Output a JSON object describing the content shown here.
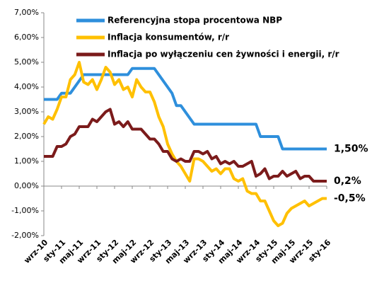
{
  "chart_data": {
    "type": "line",
    "categories": [
      "wrz-10",
      null,
      null,
      null,
      "sty-11",
      null,
      null,
      null,
      "maj-11",
      null,
      null,
      null,
      "wrz-11",
      null,
      null,
      null,
      "sty-12",
      null,
      null,
      null,
      "maj-12",
      null,
      null,
      null,
      "wrz-12",
      null,
      null,
      null,
      "sty-13",
      null,
      null,
      null,
      "maj-13",
      null,
      null,
      null,
      "wrz-13",
      null,
      null,
      null,
      "sty-14",
      null,
      null,
      null,
      "maj-14",
      null,
      null,
      null,
      "wrz-14",
      null,
      null,
      null,
      "sty-15",
      null,
      null,
      null,
      "maj-15",
      null,
      null,
      null,
      "wrz-15",
      null,
      null,
      null,
      "sty-16"
    ],
    "series": [
      {
        "name": "Referencyjna stopa procentowa NBP",
        "color": "#2e8fdc",
        "values": [
          3.5,
          3.5,
          3.5,
          3.5,
          3.75,
          3.75,
          3.75,
          4.0,
          4.25,
          4.5,
          4.5,
          4.5,
          4.5,
          4.5,
          4.5,
          4.5,
          4.5,
          4.5,
          4.5,
          4.5,
          4.75,
          4.75,
          4.75,
          4.75,
          4.75,
          4.75,
          4.5,
          4.25,
          4.0,
          3.75,
          3.25,
          3.25,
          3.0,
          2.75,
          2.5,
          2.5,
          2.5,
          2.5,
          2.5,
          2.5,
          2.5,
          2.5,
          2.5,
          2.5,
          2.5,
          2.5,
          2.5,
          2.5,
          2.5,
          2.0,
          2.0,
          2.0,
          2.0,
          2.0,
          1.5,
          1.5,
          1.5,
          1.5,
          1.5,
          1.5,
          1.5,
          1.5,
          1.5,
          1.5,
          1.5
        ],
        "value_labels": [
          null,
          null,
          null,
          null,
          null,
          null,
          null,
          null,
          null,
          null,
          null,
          null,
          null,
          null,
          null,
          null,
          null,
          null,
          null,
          null,
          null,
          null,
          null,
          null,
          null,
          null,
          null,
          null,
          null,
          null,
          null,
          null,
          null,
          null,
          null,
          null,
          null,
          null,
          null,
          null,
          null,
          null,
          null,
          null,
          null,
          null,
          null,
          null,
          null,
          null,
          null,
          null,
          null,
          null,
          null,
          null,
          null,
          null,
          null,
          null,
          null,
          null,
          null,
          null,
          "1,50%"
        ]
      },
      {
        "name": "Inflacja konsumentów, r/r",
        "color": "#ffc000",
        "values": [
          2.5,
          2.8,
          2.7,
          3.1,
          3.6,
          3.6,
          4.3,
          4.5,
          5.0,
          4.2,
          4.1,
          4.3,
          3.9,
          4.3,
          4.8,
          4.6,
          4.1,
          4.3,
          3.9,
          4.0,
          3.6,
          4.3,
          4.0,
          3.8,
          3.8,
          3.4,
          2.8,
          2.4,
          1.7,
          1.3,
          1.0,
          0.8,
          0.5,
          0.2,
          1.1,
          1.1,
          1.0,
          0.8,
          0.6,
          0.7,
          0.5,
          0.7,
          0.7,
          0.3,
          0.2,
          0.3,
          -0.2,
          -0.3,
          -0.3,
          -0.6,
          -0.6,
          -1.0,
          -1.4,
          -1.6,
          -1.5,
          -1.1,
          -0.9,
          -0.8,
          -0.7,
          -0.6,
          -0.8,
          -0.7,
          -0.6,
          -0.5,
          -0.5
        ],
        "value_labels": [
          null,
          null,
          null,
          null,
          null,
          null,
          null,
          null,
          null,
          null,
          null,
          null,
          null,
          null,
          null,
          null,
          null,
          null,
          null,
          null,
          null,
          null,
          null,
          null,
          null,
          null,
          null,
          null,
          null,
          null,
          null,
          null,
          null,
          null,
          null,
          null,
          null,
          null,
          null,
          null,
          null,
          null,
          null,
          null,
          null,
          null,
          null,
          null,
          null,
          null,
          null,
          null,
          null,
          null,
          null,
          null,
          null,
          null,
          null,
          null,
          null,
          null,
          null,
          null,
          "-0,5%"
        ]
      },
      {
        "name": "Inflacja po wyłączeniu cen żywności i energii, r/r",
        "color": "#7b1b1b",
        "values": [
          1.2,
          1.2,
          1.2,
          1.6,
          1.6,
          1.7,
          2.0,
          2.1,
          2.4,
          2.4,
          2.4,
          2.7,
          2.6,
          2.8,
          3.0,
          3.1,
          2.5,
          2.6,
          2.4,
          2.6,
          2.3,
          2.3,
          2.3,
          2.1,
          1.9,
          1.9,
          1.7,
          1.4,
          1.4,
          1.1,
          1.0,
          1.1,
          1.0,
          1.0,
          1.4,
          1.4,
          1.3,
          1.4,
          1.1,
          1.2,
          0.9,
          1.0,
          0.9,
          1.0,
          0.8,
          0.8,
          0.9,
          1.0,
          0.4,
          0.5,
          0.7,
          0.3,
          0.4,
          0.4,
          0.6,
          0.4,
          0.5,
          0.6,
          0.3,
          0.4,
          0.4,
          0.2,
          0.2,
          0.2,
          0.2
        ],
        "value_labels": [
          null,
          null,
          null,
          null,
          null,
          null,
          null,
          null,
          null,
          null,
          null,
          null,
          null,
          null,
          null,
          null,
          null,
          null,
          null,
          null,
          null,
          null,
          null,
          null,
          null,
          null,
          null,
          null,
          null,
          null,
          null,
          null,
          null,
          null,
          null,
          null,
          null,
          null,
          null,
          null,
          null,
          null,
          null,
          null,
          null,
          null,
          null,
          null,
          null,
          null,
          null,
          null,
          null,
          null,
          null,
          null,
          null,
          null,
          null,
          null,
          null,
          null,
          null,
          null,
          "0,2%"
        ]
      }
    ],
    "ylim": [
      -2,
      7
    ],
    "yticks": [
      {
        "value": -2,
        "label": "-2,00%"
      },
      {
        "value": -1,
        "label": "-1,00%"
      },
      {
        "value": 0,
        "label": "0,00%"
      },
      {
        "value": 1,
        "label": "1,00%"
      },
      {
        "value": 2,
        "label": "2,00%"
      },
      {
        "value": 3,
        "label": "3,00%"
      },
      {
        "value": 4,
        "label": "4,00%"
      },
      {
        "value": 5,
        "label": "5,00%"
      },
      {
        "value": 6,
        "label": "6,00%"
      },
      {
        "value": 7,
        "label": "7,00%"
      }
    ],
    "grid": false,
    "legend": "upper left"
  }
}
